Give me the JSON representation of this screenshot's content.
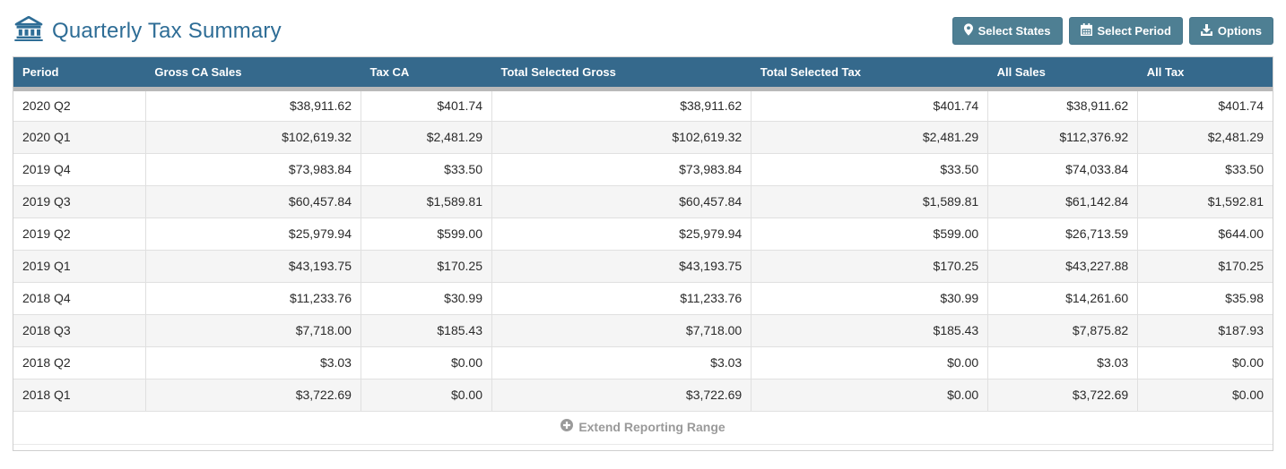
{
  "header": {
    "title": "Quarterly Tax Summary",
    "buttons": {
      "select_states": "Select States",
      "select_period": "Select Period",
      "options": "Options"
    }
  },
  "table": {
    "columns": [
      "Period",
      "Gross CA Sales",
      "Tax CA",
      "Total Selected Gross",
      "Total Selected Tax",
      "All Sales",
      "All Tax"
    ],
    "rows": [
      [
        "2020 Q2",
        "$38,911.62",
        "$401.74",
        "$38,911.62",
        "$401.74",
        "$38,911.62",
        "$401.74"
      ],
      [
        "2020 Q1",
        "$102,619.32",
        "$2,481.29",
        "$102,619.32",
        "$2,481.29",
        "$112,376.92",
        "$2,481.29"
      ],
      [
        "2019 Q4",
        "$73,983.84",
        "$33.50",
        "$73,983.84",
        "$33.50",
        "$74,033.84",
        "$33.50"
      ],
      [
        "2019 Q3",
        "$60,457.84",
        "$1,589.81",
        "$60,457.84",
        "$1,589.81",
        "$61,142.84",
        "$1,592.81"
      ],
      [
        "2019 Q2",
        "$25,979.94",
        "$599.00",
        "$25,979.94",
        "$599.00",
        "$26,713.59",
        "$644.00"
      ],
      [
        "2019 Q1",
        "$43,193.75",
        "$170.25",
        "$43,193.75",
        "$170.25",
        "$43,227.88",
        "$170.25"
      ],
      [
        "2018 Q4",
        "$11,233.76",
        "$30.99",
        "$11,233.76",
        "$30.99",
        "$14,261.60",
        "$35.98"
      ],
      [
        "2018 Q3",
        "$7,718.00",
        "$185.43",
        "$7,718.00",
        "$185.43",
        "$7,875.82",
        "$187.93"
      ],
      [
        "2018 Q2",
        "$3.03",
        "$0.00",
        "$3.03",
        "$0.00",
        "$3.03",
        "$0.00"
      ],
      [
        "2018 Q1",
        "$3,722.69",
        "$0.00",
        "$3,722.69",
        "$0.00",
        "$3,722.69",
        "$0.00"
      ]
    ],
    "footer_label": "Extend Reporting Range"
  },
  "colors": {
    "title_accent": "#2e6d96",
    "table_header_bg": "#35698c",
    "button_bg": "#4e7f93",
    "stripe_bg": "#f5f5f5",
    "footer_text": "#9a9a9a"
  }
}
